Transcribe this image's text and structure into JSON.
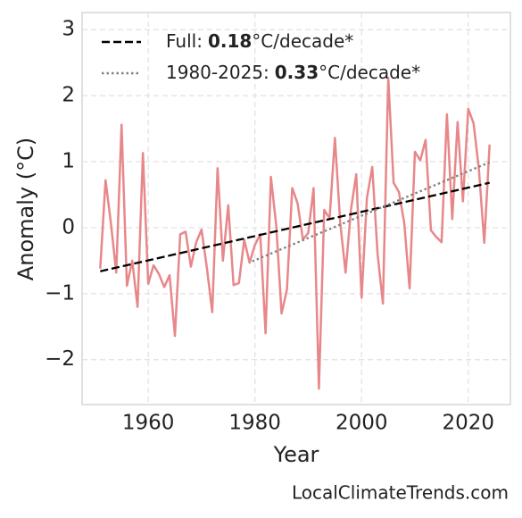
{
  "chart_data": {
    "type": "line",
    "x_label": "Year",
    "y_label": "Anomaly (°C)",
    "source": "LocalClimateTrends.com",
    "xlim": [
      1947.6,
      2027.9
    ],
    "ylim": [
      -2.68,
      3.26
    ],
    "xticks": [
      1960,
      1980,
      2000,
      2020
    ],
    "yticks": [
      {
        "value": -2,
        "label": "−2"
      },
      {
        "value": -1,
        "label": "−1"
      },
      0,
      1,
      2,
      3
    ],
    "grid": true,
    "legend_position": "upper left",
    "series": [
      {
        "color": "#e8878a",
        "style": "solid",
        "x": [
          1951,
          1952,
          1953,
          1954,
          1955,
          1956,
          1957,
          1958,
          1959,
          1960,
          1961,
          1962,
          1963,
          1964,
          1965,
          1966,
          1967,
          1968,
          1969,
          1970,
          1971,
          1972,
          1973,
          1974,
          1975,
          1976,
          1977,
          1978,
          1979,
          1980,
          1981,
          1982,
          1983,
          1984,
          1985,
          1986,
          1987,
          1988,
          1989,
          1990,
          1991,
          1992,
          1993,
          1994,
          1995,
          1996,
          1997,
          1998,
          1999,
          2000,
          2001,
          2002,
          2003,
          2004,
          2005,
          2006,
          2007,
          2008,
          2009,
          2010,
          2011,
          2012,
          2013,
          2014,
          2015,
          2016,
          2017,
          2018,
          2019,
          2020,
          2021,
          2022,
          2023,
          2024
        ],
        "values": [
          -0.62,
          0.72,
          0.07,
          -0.68,
          1.56,
          -0.88,
          -0.5,
          -1.2,
          1.13,
          -0.85,
          -0.57,
          -0.7,
          -0.9,
          -0.72,
          -1.64,
          -0.1,
          -0.06,
          -0.59,
          -0.22,
          -0.03,
          -0.61,
          -1.28,
          0.9,
          -0.5,
          0.34,
          -0.87,
          -0.84,
          -0.18,
          -0.53,
          -0.26,
          -0.1,
          -1.6,
          0.77,
          0.03,
          -1.3,
          -0.94,
          0.6,
          0.37,
          -0.18,
          -0.08,
          0.6,
          -2.44,
          0.27,
          0.14,
          1.36,
          0.07,
          -0.68,
          0.27,
          0.81,
          -1.06,
          0.45,
          0.92,
          -0.4,
          -1.15,
          2.27,
          0.68,
          0.54,
          0.07,
          -0.92,
          1.15,
          1.02,
          1.33,
          -0.04,
          -0.14,
          -0.22,
          1.72,
          0.13,
          1.6,
          0.4,
          1.8,
          1.58,
          0.88,
          -0.23,
          1.26
        ]
      },
      {
        "name_prefix": "Full:",
        "name_rate": "0.18",
        "name_unit": "°C/decade*",
        "color": "#000000",
        "style": "dashed",
        "x": [
          1951,
          2024
        ],
        "values": [
          -0.66,
          0.68
        ]
      },
      {
        "name_prefix": "1980-2025:",
        "name_rate": "0.33",
        "name_unit": "°C/decade*",
        "color": "#808080",
        "style": "dotted",
        "x": [
          1979.5,
          2024
        ],
        "values": [
          -0.51,
          0.99
        ]
      }
    ]
  }
}
